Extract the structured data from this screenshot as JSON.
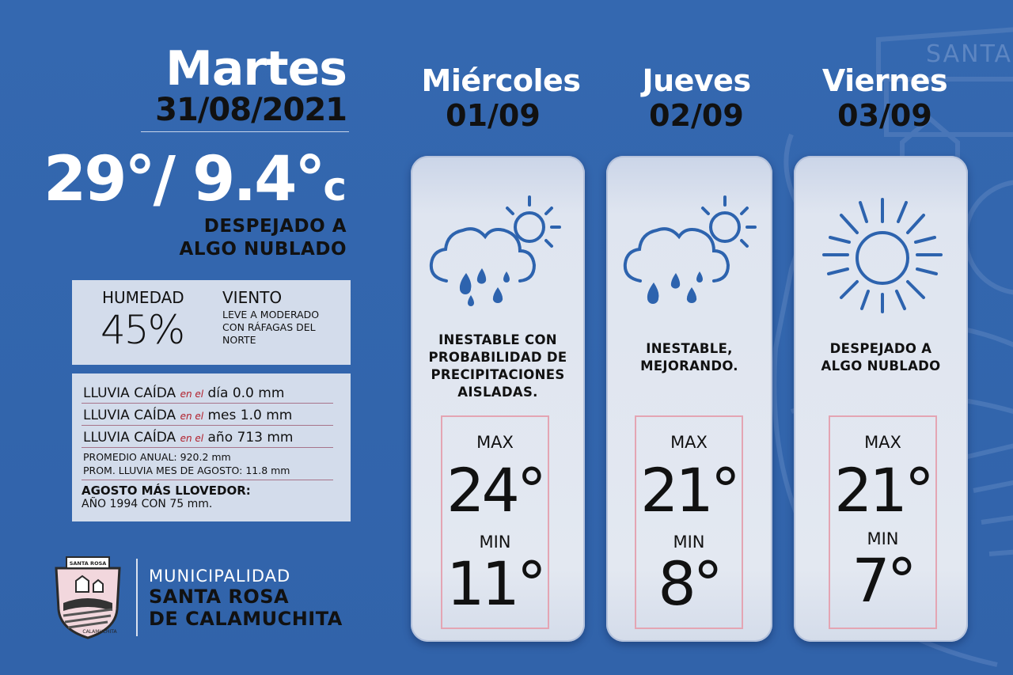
{
  "today": {
    "day": "Martes",
    "date": "31/08/2021",
    "temps": "29°/ 9.4°",
    "unit": "c",
    "condition_line1": "DESPEJADO A",
    "condition_line2": "ALGO NUBLADO",
    "humidity_label": "HUMEDAD",
    "humidity_value": "45%",
    "wind_label": "VIENTO",
    "wind_desc_line1": "LEVE A MODERADO",
    "wind_desc_line2": "CON RÁFAGAS DEL",
    "wind_desc_line3": "NORTE"
  },
  "rain": {
    "prefix": "LLUVIA CAÍDA",
    "lines": [
      {
        "connector": "en el",
        "text": "día 0.0 mm"
      },
      {
        "connector": "en el",
        "text": "mes 1.0 mm"
      },
      {
        "connector": "en el",
        "text": "año 713 mm"
      }
    ],
    "annual_avg": "PROMEDIO ANUAL: 920.2 mm",
    "month_avg": "PROM. LLUVIA MES DE AGOSTO: 11.8 mm",
    "record_title": "AGOSTO MÁS LLOVEDOR:",
    "record_text": "AÑO 1994 CON 75 mm."
  },
  "logo": {
    "line1": "MUNICIPALIDAD",
    "line2": "SANTA ROSA",
    "line3": "DE CALAMUCHITA",
    "emblem_text_top": "SANTA ROSA",
    "emblem_text_bottom": "CALAMUCHITA"
  },
  "watermark_text": "SANTA",
  "forecast": [
    {
      "day": "Miércoles",
      "date": "01/09",
      "icon": "rain-sun-icon",
      "condition": [
        "INESTABLE CON",
        "PROBABILIDAD DE",
        "PRECIPITACIONES",
        "AISLADAS."
      ],
      "max_label": "MAX",
      "max": "24°",
      "min_label": "MIN",
      "min": "11°"
    },
    {
      "day": "Jueves",
      "date": "02/09",
      "icon": "rain-sun-icon",
      "condition": [
        "INESTABLE,",
        "MEJORANDO."
      ],
      "max_label": "MAX",
      "max": "21°",
      "min_label": "MIN",
      "min": "8°"
    },
    {
      "day": "Viernes",
      "date": "03/09",
      "icon": "sun-icon",
      "condition": [
        "DESPEJADO A",
        "ALGO NUBLADO"
      ],
      "max_label": "MAX",
      "max": "21°",
      "min_label": "MIN",
      "min": "7°"
    }
  ],
  "colors": {
    "background": "#3366ad",
    "card": "#e0e6f0",
    "temp_box_border": "#e4a5b3",
    "accent_red": "#b21f2b"
  }
}
